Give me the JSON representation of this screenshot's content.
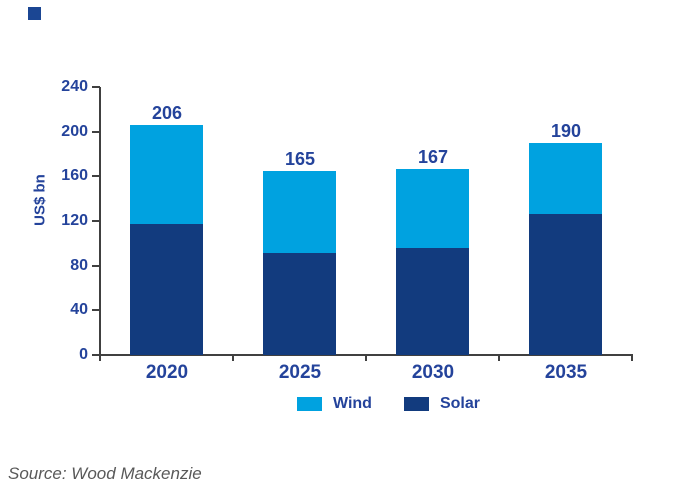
{
  "page": {
    "background": "#ffffff"
  },
  "logo": {
    "color": "#1B4693"
  },
  "chart_data": {
    "type": "bar",
    "stacked": true,
    "categories": [
      "2020",
      "2025",
      "2030",
      "2035"
    ],
    "series": [
      {
        "name": "Solar",
        "color": "#123B7E",
        "values": [
          117,
          91,
          96,
          126
        ]
      },
      {
        "name": "Wind",
        "color": "#00A2E0",
        "values": [
          89,
          74,
          71,
          64
        ]
      }
    ],
    "totals": [
      206,
      165,
      167,
      190
    ],
    "title": "",
    "xlabel": "",
    "ylabel": "US$ bn",
    "ylim": [
      0,
      240
    ],
    "yticks": [
      0,
      40,
      80,
      120,
      160,
      200,
      240
    ],
    "grid": false,
    "legend": {
      "position": "bottom",
      "items": [
        {
          "label": "Wind",
          "color": "#00A2E0"
        },
        {
          "label": "Solar",
          "color": "#123B7E"
        }
      ]
    }
  },
  "footer": {
    "source": "Source: Wood Mackenzie"
  },
  "colors": {
    "axis": "#404040",
    "label_text": "#24439B",
    "source_text": "#595959"
  }
}
